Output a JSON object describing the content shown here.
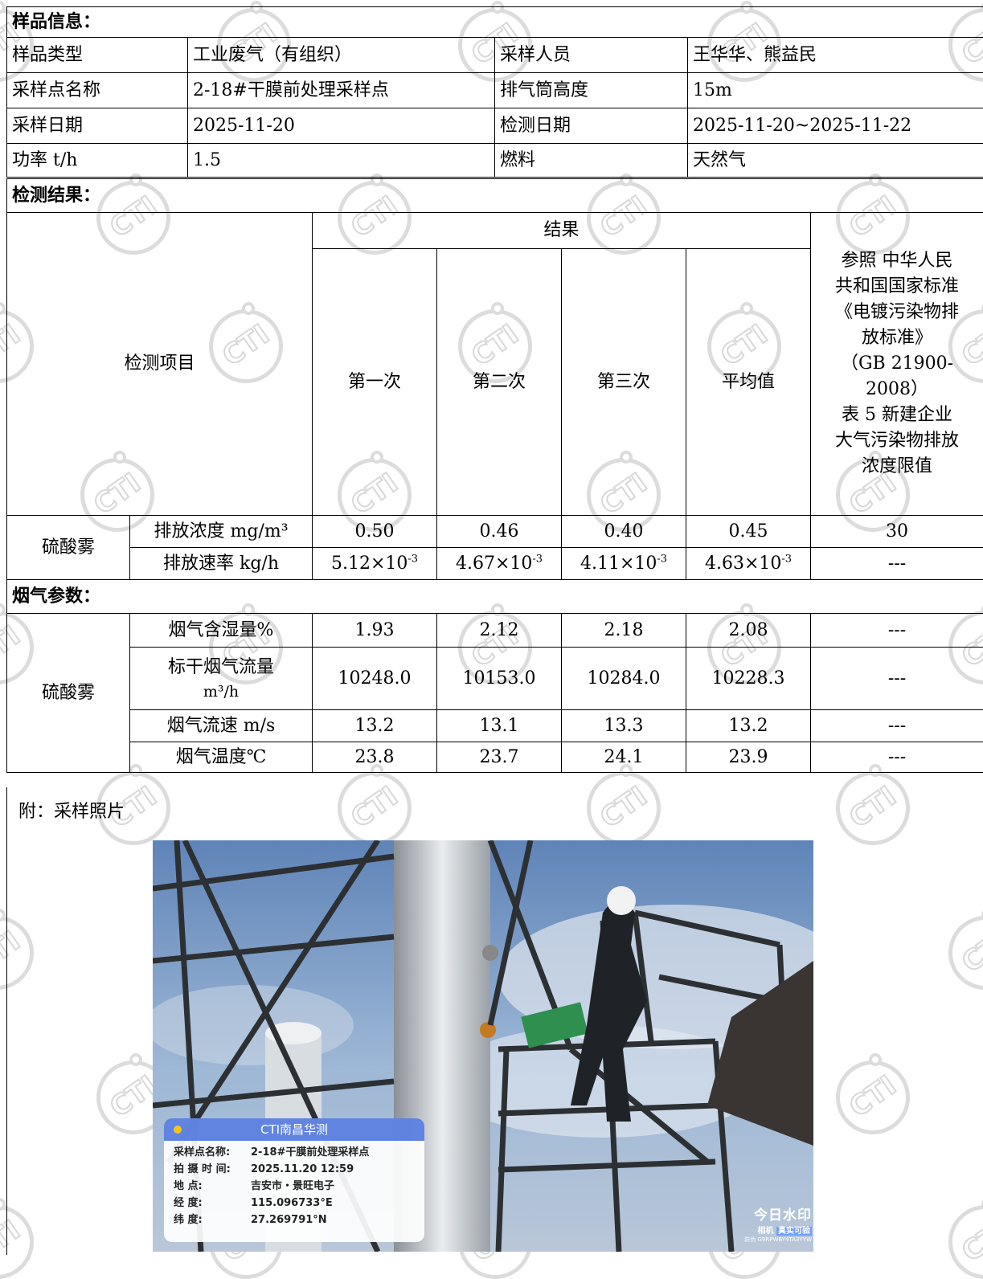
{
  "sample_info": {
    "heading": "样品信息：",
    "rows": [
      {
        "l1": "样品类型",
        "v1": "工业废气（有组织）",
        "l2": "采样人员",
        "v2": "王华华、熊益民"
      },
      {
        "l1": "采样点名称",
        "v1": "2-18#干膜前处理采样点",
        "l2": "排气筒高度",
        "v2": "15m"
      },
      {
        "l1": "采样日期",
        "v1": "2025-11-20",
        "l2": "检测日期",
        "v2": "2025-11-20~2025-11-22"
      },
      {
        "l1": "功率 t/h",
        "v1": "1.5",
        "l2": "燃料",
        "v2": "天然气"
      }
    ]
  },
  "results": {
    "heading": "检测结果：",
    "item_header": "检测项目",
    "result_header": "结果",
    "cols": [
      "第一次",
      "第二次",
      "第三次",
      "平均值"
    ],
    "standard_lines": [
      "参照 中华人民",
      "共和国国家标准",
      "《电镀污染物排",
      "放标准》",
      "（GB 21900-",
      "2008）",
      "表 5 新建企业",
      "大气污染物排放",
      "浓度限值"
    ],
    "pollutant": "硫酸雾",
    "rows": [
      {
        "param": "排放浓度 mg/m³",
        "v": [
          "0.50",
          "0.46",
          "0.40",
          "0.45"
        ],
        "limit": "30"
      },
      {
        "param": "排放速率 kg/h",
        "v": [
          "5.12×10",
          "4.67×10",
          "4.11×10",
          "4.63×10"
        ],
        "exp": "-3",
        "limit": "---"
      }
    ]
  },
  "flue": {
    "heading": "烟气参数：",
    "pollutant": "硫酸雾",
    "rows": [
      {
        "param": "烟气含湿量%",
        "v": [
          "1.93",
          "2.12",
          "2.18",
          "2.08"
        ],
        "limit": "---"
      },
      {
        "param1": "标干烟气流量",
        "param2": "m³/h",
        "v": [
          "10248.0",
          "10153.0",
          "10284.0",
          "10228.3"
        ],
        "limit": "---"
      },
      {
        "param": "烟气流速 m/s",
        "v": [
          "13.2",
          "13.1",
          "13.3",
          "13.2"
        ],
        "limit": "---"
      },
      {
        "param": "烟气温度℃",
        "v": [
          "23.8",
          "23.7",
          "24.1",
          "23.9"
        ],
        "limit": "---"
      }
    ]
  },
  "attachment": {
    "label": "附：采样照片",
    "photo_watermark": {
      "title": "CTI南昌华测",
      "lines": [
        {
          "k": "采样点名称:",
          "v": "2-18#干膜前处理采样点"
        },
        {
          "k": "拍 摄 时 间:",
          "v": "2025.11.20 12:59"
        },
        {
          "k": "地       点:",
          "v": "吉安市・景旺电子"
        },
        {
          "k": "经       度:",
          "v": "115.096733°E"
        },
        {
          "k": "纬       度:",
          "v": "27.269791°N"
        }
      ]
    },
    "brand": {
      "name": "今日水印",
      "sub1": "相机",
      "sub2": "真实可验",
      "code": "防伪 G9RPWBY4TA3YYW"
    }
  },
  "watermark_logo": "CTI"
}
